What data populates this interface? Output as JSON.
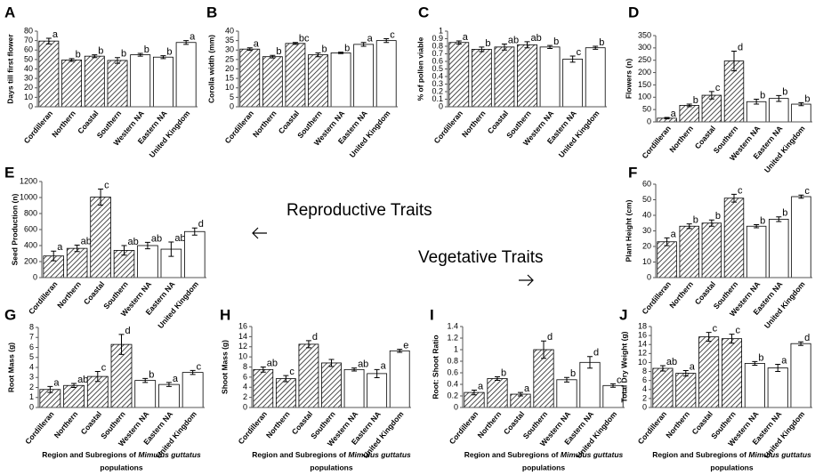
{
  "annotations": [
    "Reproductive Traits",
    "Vegetative Traits"
  ],
  "chart_data": [
    {
      "type": "bar",
      "panel": "A",
      "ylabel": "Days till first flower",
      "categories": [
        "Cordilleran",
        "Northern",
        "Coastal",
        "Southern",
        "Western NA",
        "Eastern NA",
        "United Kingdom"
      ],
      "values": [
        69.5,
        49.5,
        53.5,
        49,
        55,
        52.5,
        68
      ],
      "errors": [
        3,
        1.5,
        1.5,
        3,
        1.5,
        1.5,
        2
      ],
      "letters": [
        "a",
        "b",
        "b",
        "b",
        "b",
        "b",
        "a"
      ],
      "fills": [
        "hatched",
        "hatched",
        "hatched",
        "hatched",
        "white",
        "white",
        "white"
      ],
      "ylim": [
        0,
        80
      ],
      "yticks": [
        0,
        10,
        20,
        30,
        40,
        50,
        60,
        70,
        80
      ]
    },
    {
      "type": "bar",
      "panel": "B",
      "ylabel": "Corolla width (mm)",
      "categories": [
        "Cordilleran",
        "Northern",
        "Coastal",
        "Southern",
        "Western NA",
        "Eastern NA",
        "United Kingdom"
      ],
      "values": [
        30.5,
        26.5,
        33.5,
        27.5,
        28.5,
        33,
        35
      ],
      "errors": [
        0.7,
        0.7,
        0.5,
        1,
        0.4,
        1,
        1
      ],
      "letters": [
        "a",
        "b",
        "bc",
        "b",
        "b",
        "a",
        "c"
      ],
      "fills": [
        "hatched",
        "hatched",
        "hatched",
        "hatched",
        "white",
        "white",
        "white"
      ],
      "ylim": [
        0,
        40
      ],
      "yticks": [
        0,
        5,
        10,
        15,
        20,
        25,
        30,
        35,
        40
      ]
    },
    {
      "type": "bar",
      "panel": "C",
      "ylabel": "% of pollen viable",
      "categories": [
        "Cordilleran",
        "Northern",
        "Coastal",
        "Southern",
        "Western NA",
        "Eastern NA",
        "United Kingdom"
      ],
      "values": [
        0.85,
        0.76,
        0.79,
        0.82,
        0.79,
        0.63,
        0.78
      ],
      "errors": [
        0.02,
        0.03,
        0.04,
        0.04,
        0.02,
        0.04,
        0.02
      ],
      "letters": [
        "a",
        "b",
        "ab",
        "ab",
        "b",
        "c",
        "b"
      ],
      "fills": [
        "hatched",
        "hatched",
        "hatched",
        "hatched",
        "white",
        "white",
        "white"
      ],
      "ylim": [
        0,
        1
      ],
      "yticks": [
        0,
        0.1,
        0.2,
        0.3,
        0.4,
        0.5,
        0.6,
        0.7,
        0.8,
        0.9,
        1
      ]
    },
    {
      "type": "bar",
      "panel": "D",
      "ylabel": "Flowers (n)",
      "categories": [
        "Cordilleran",
        "Northern",
        "Coastal",
        "Southern",
        "Western NA",
        "Eastern NA",
        "United Kingdom"
      ],
      "values": [
        15,
        67,
        108,
        247,
        82,
        95,
        72
      ],
      "errors": [
        3,
        5,
        15,
        40,
        10,
        12,
        6
      ],
      "letters": [
        "a",
        "b",
        "c",
        "d",
        "b",
        "b",
        "b"
      ],
      "fills": [
        "hatched",
        "hatched",
        "hatched",
        "hatched",
        "white",
        "white",
        "white"
      ],
      "ylim": [
        0,
        350
      ],
      "yticks": [
        0,
        50,
        100,
        150,
        200,
        250,
        300,
        350
      ]
    },
    {
      "type": "bar",
      "panel": "E",
      "ylabel": "Seed Production (n)",
      "categories": [
        "Cordilleran",
        "Northern",
        "Coastal",
        "Southern",
        "Western NA",
        "Eastern NA",
        "United Kingdom"
      ],
      "values": [
        270,
        365,
        1005,
        340,
        400,
        355,
        575
      ],
      "errors": [
        60,
        40,
        100,
        60,
        40,
        90,
        45
      ],
      "letters": [
        "a",
        "ab",
        "c",
        "ab",
        "ab",
        "ab",
        "d"
      ],
      "fills": [
        "hatched",
        "hatched",
        "hatched",
        "hatched",
        "white",
        "white",
        "white"
      ],
      "ylim": [
        0,
        1200
      ],
      "yticks": [
        0,
        200,
        400,
        600,
        800,
        1000,
        1200
      ]
    },
    {
      "type": "bar",
      "panel": "F",
      "ylabel": "Plant Height (cm)",
      "categories": [
        "Cordilleran",
        "Northern",
        "Coastal",
        "Southern",
        "Western NA",
        "Eastern NA",
        "United Kingdom"
      ],
      "values": [
        23,
        33,
        35,
        51,
        33,
        37.5,
        52
      ],
      "errors": [
        2.5,
        1.5,
        2,
        2.5,
        1,
        1.5,
        1
      ],
      "letters": [
        "a",
        "b",
        "b",
        "c",
        "b",
        "b",
        "c"
      ],
      "fills": [
        "hatched",
        "hatched",
        "hatched",
        "hatched",
        "white",
        "white",
        "white"
      ],
      "ylim": [
        0,
        60
      ],
      "yticks": [
        0,
        10,
        20,
        30,
        40,
        50,
        60
      ]
    },
    {
      "type": "bar",
      "panel": "G",
      "ylabel": "Root Mass (g)",
      "xlabel": [
        "Region and Subregions of",
        "Mimulus guttatus",
        "populations"
      ],
      "categories": [
        "Cordilleran",
        "Northern",
        "Coastal",
        "Southern",
        "Western NA",
        "Eastern NA",
        "United Kingdom"
      ],
      "values": [
        1.8,
        2.2,
        3.1,
        6.3,
        2.7,
        2.3,
        3.5
      ],
      "errors": [
        0.3,
        0.2,
        0.5,
        1,
        0.2,
        0.2,
        0.2
      ],
      "letters": [
        "a",
        "ab",
        "c",
        "d",
        "b",
        "a",
        "c"
      ],
      "fills": [
        "hatched",
        "hatched",
        "hatched",
        "hatched",
        "white",
        "white",
        "white"
      ],
      "ylim": [
        0,
        8
      ],
      "yticks": [
        0,
        1,
        2,
        3,
        4,
        5,
        6,
        7,
        8
      ]
    },
    {
      "type": "bar",
      "panel": "H",
      "ylabel": "Shoot Mass (g)",
      "xlabel": [
        "Region and Subregions of",
        "Mimulus guttatus",
        "populations"
      ],
      "categories": [
        "Cordilleran",
        "Northern",
        "Coastal",
        "Southern",
        "Western NA",
        "Eastern NA",
        "United Kingdom"
      ],
      "values": [
        7.5,
        5.7,
        12.5,
        8.8,
        7.5,
        6.7,
        11.2
      ],
      "errors": [
        0.5,
        0.6,
        0.7,
        0.7,
        0.3,
        0.8,
        0.3
      ],
      "letters": [
        "ab",
        "c",
        "d",
        null,
        "ab",
        "a",
        "e"
      ],
      "fills": [
        "hatched",
        "hatched",
        "hatched",
        "hatched",
        "white",
        "white",
        "white"
      ],
      "ylim": [
        0,
        16
      ],
      "yticks": [
        0,
        2,
        4,
        6,
        8,
        10,
        12,
        14,
        16
      ]
    },
    {
      "type": "bar",
      "panel": "I",
      "ylabel": "Root: Shoot Ratio",
      "xlabel": [
        "Region and Subregions of",
        "Mimulus guttatus",
        "populations"
      ],
      "categories": [
        "Cordilleran",
        "Northern",
        "Coastal",
        "Southern",
        "Western NA",
        "Eastern NA",
        "United Kingdom"
      ],
      "values": [
        0.26,
        0.5,
        0.23,
        1.0,
        0.48,
        0.78,
        0.38
      ],
      "errors": [
        0.04,
        0.03,
        0.03,
        0.15,
        0.04,
        0.1,
        0.03
      ],
      "letters": [
        "a",
        "b",
        "a",
        "d",
        "b",
        "d",
        "c"
      ],
      "fills": [
        "hatched",
        "hatched",
        "hatched",
        "hatched",
        "white",
        "white",
        "white"
      ],
      "ylim": [
        0,
        1.4
      ],
      "yticks": [
        0,
        0.2,
        0.4,
        0.6,
        0.8,
        1,
        1.2,
        1.4
      ]
    },
    {
      "type": "bar",
      "panel": "J",
      "ylabel": "Total Dry Weight (g)",
      "xlabel": [
        "Region and Subregions of",
        "Mimulus guttatus",
        "populations"
      ],
      "categories": [
        "Cordilleran",
        "Northern",
        "Coastal",
        "Southern",
        "Western NA",
        "Eastern NA",
        "United Kingdom"
      ],
      "values": [
        8.7,
        7.6,
        15.7,
        15.3,
        9.8,
        8.8,
        14.2
      ],
      "errors": [
        0.6,
        0.6,
        1,
        1,
        0.4,
        0.8,
        0.4
      ],
      "letters": [
        "ab",
        "a",
        "c",
        "c",
        "b",
        "a",
        "d"
      ],
      "fills": [
        "hatched",
        "hatched",
        "hatched",
        "hatched",
        "white",
        "white",
        "white"
      ],
      "ylim": [
        0,
        18
      ],
      "yticks": [
        0,
        2,
        4,
        6,
        8,
        10,
        12,
        14,
        16,
        18
      ]
    }
  ]
}
